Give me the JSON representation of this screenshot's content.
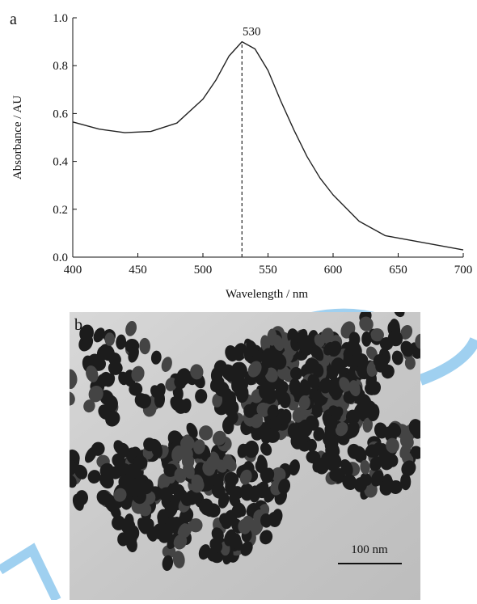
{
  "chart_data": {
    "type": "line",
    "panel_label": "a",
    "xlabel": "Wavelength / nm",
    "ylabel": "Absorbance / AU",
    "x": [
      400,
      420,
      440,
      460,
      480,
      500,
      510,
      520,
      530,
      540,
      550,
      560,
      570,
      580,
      590,
      600,
      620,
      640,
      660,
      680,
      700
    ],
    "series": [
      {
        "color": "#222222",
        "values": [
          0.565,
          0.535,
          0.52,
          0.525,
          0.56,
          0.66,
          0.74,
          0.84,
          0.9,
          0.87,
          0.78,
          0.65,
          0.53,
          0.42,
          0.33,
          0.26,
          0.15,
          0.09,
          0.07,
          0.05,
          0.03
        ]
      }
    ],
    "annotation": {
      "x": 530
    },
    "xlim": [
      400,
      700
    ],
    "xticks": [
      400,
      450,
      500,
      550,
      600,
      650,
      700
    ],
    "ylim": [
      0,
      1
    ],
    "yticks": [
      {
        "value": 0,
        "label": "0.0"
      },
      0.2,
      0.4,
      0.6,
      0.8,
      {
        "value": 1,
        "label": "1.0"
      }
    ]
  },
  "image": {
    "panel_label": "b",
    "scale_bar": "100 nm"
  }
}
